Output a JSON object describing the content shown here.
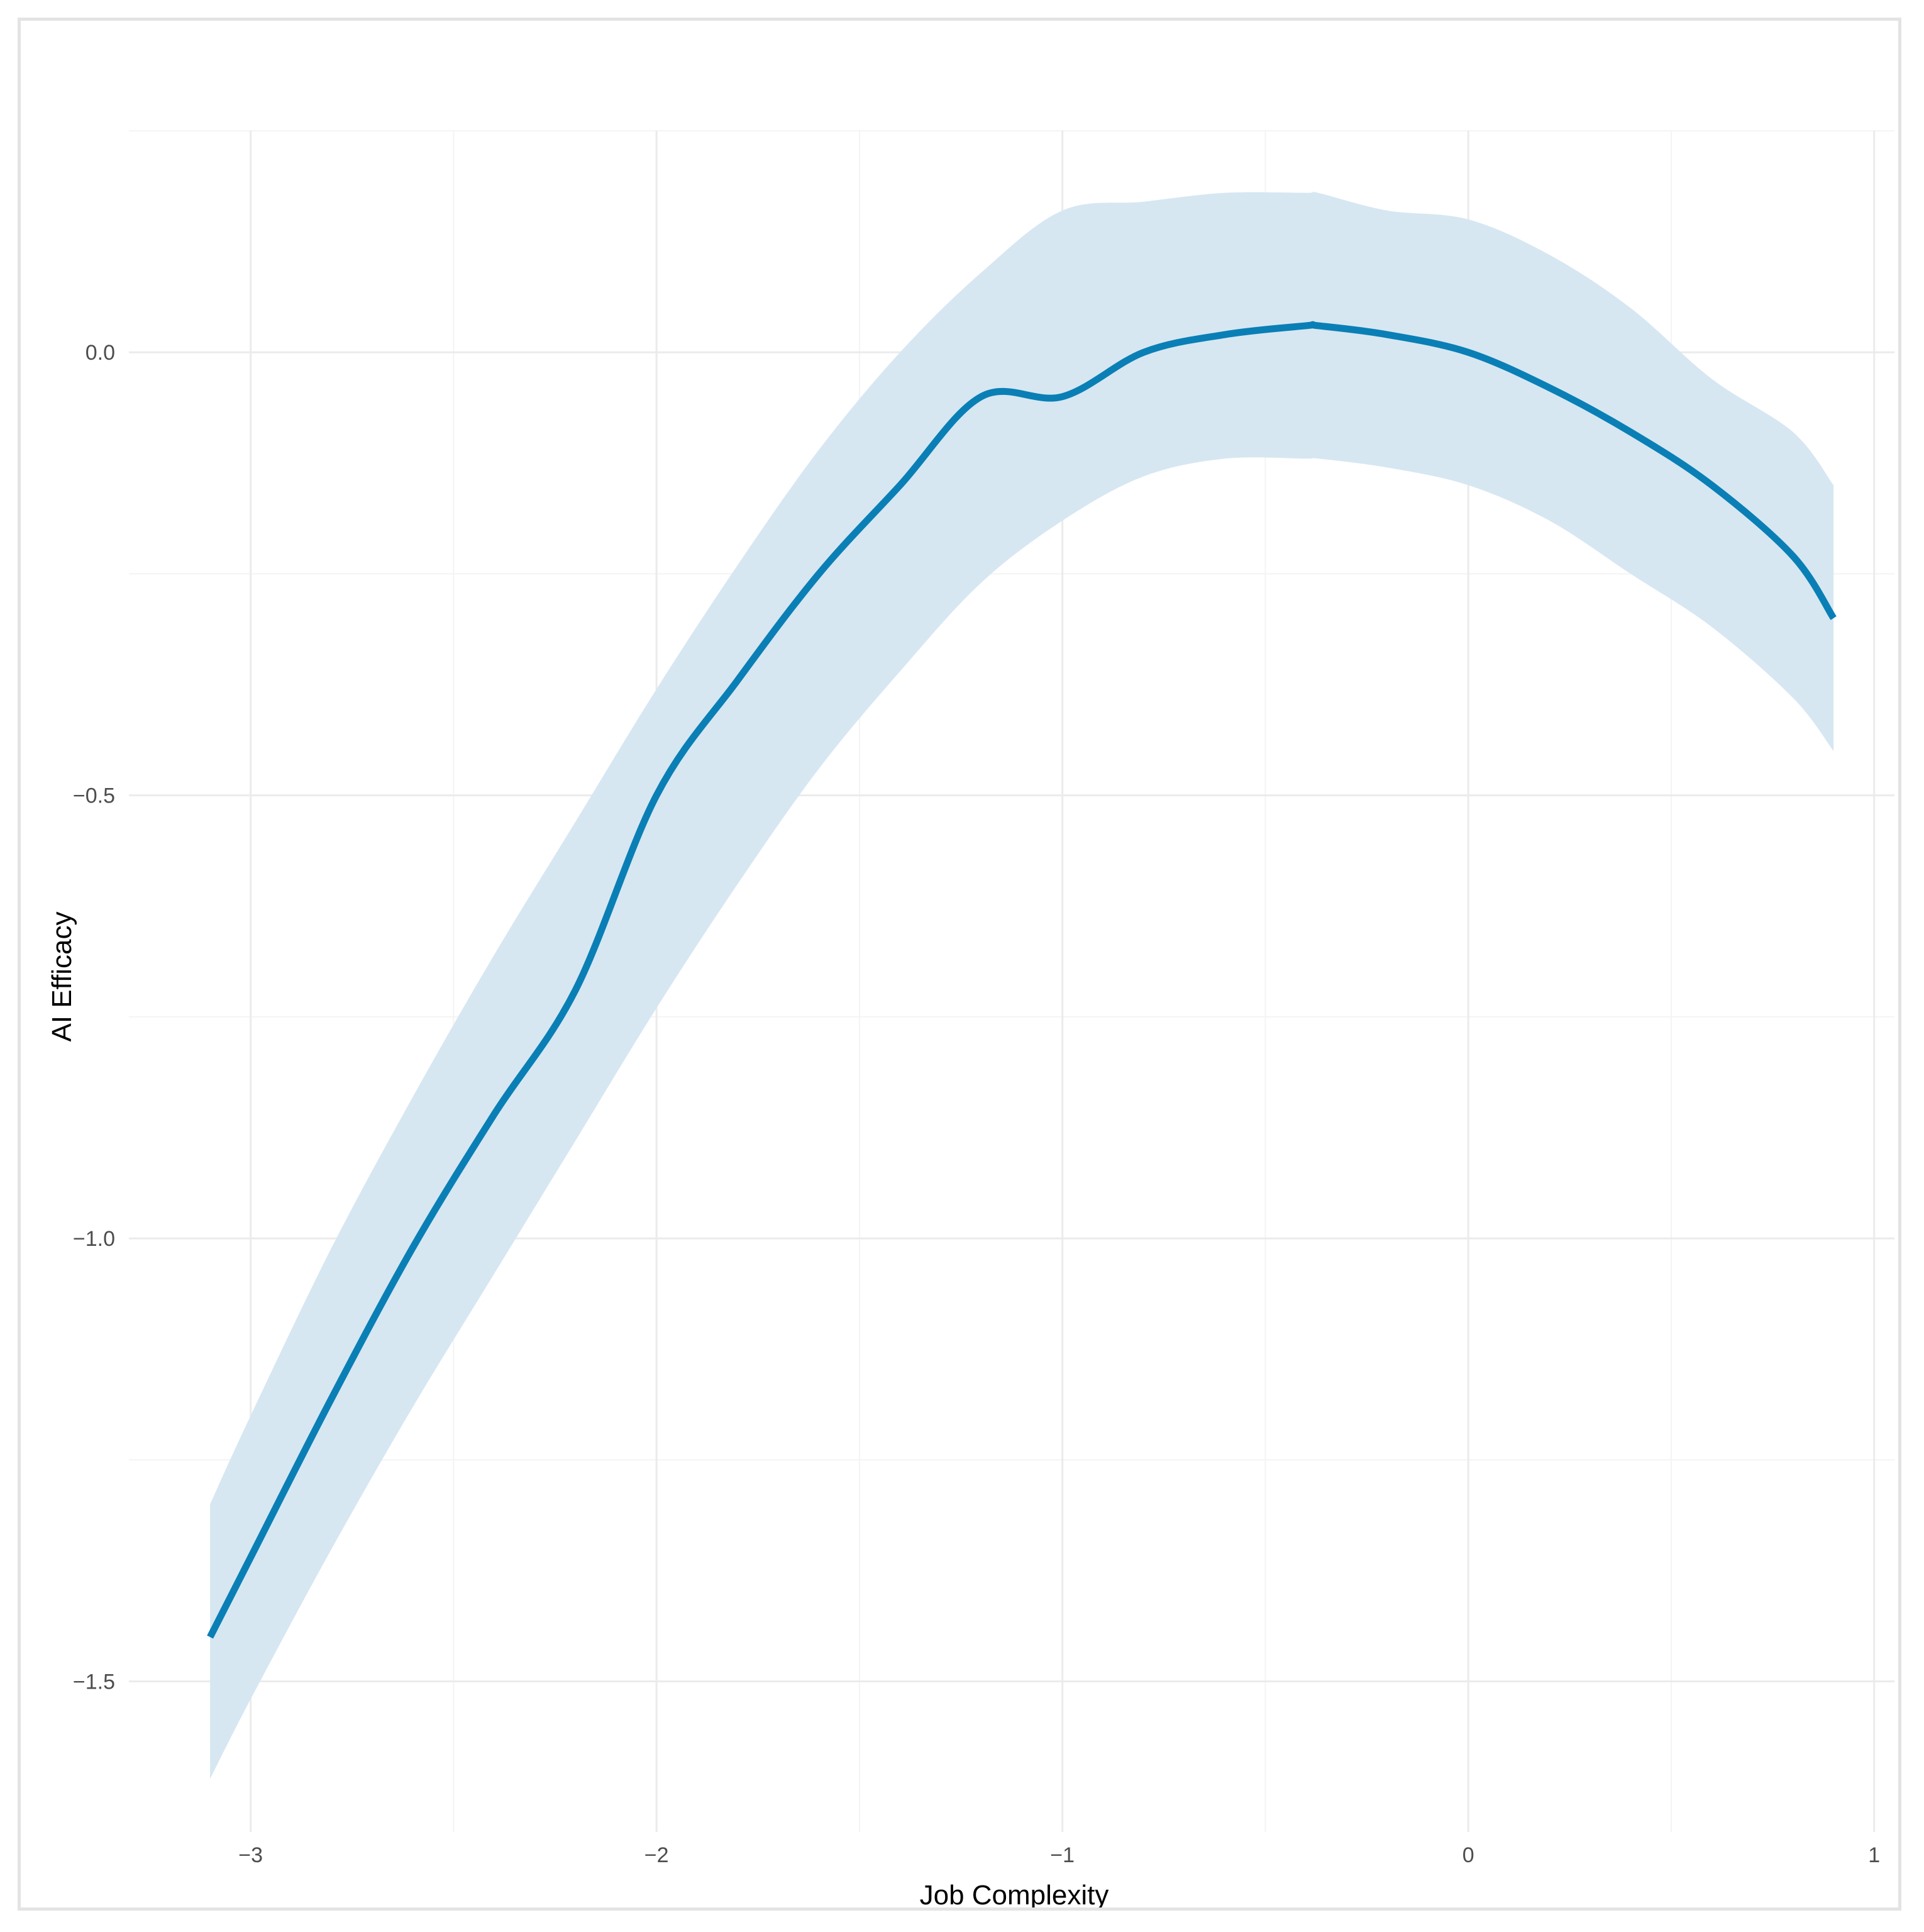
{
  "chart_data": {
    "type": "line",
    "title": "",
    "xlabel": "Job Complexity",
    "ylabel": "AI Efficacy",
    "xlim": [
      -3.3,
      1.05
    ],
    "ylim": [
      -1.67,
      0.25
    ],
    "x_ticks": [
      -3,
      -2,
      -1,
      0,
      1
    ],
    "x_tick_labels": [
      "−3",
      "−2",
      "−1",
      "0",
      "1"
    ],
    "y_ticks": [
      -1.5,
      -1.0,
      -0.5,
      0.0
    ],
    "y_tick_labels": [
      "−1.5",
      "−1.0",
      "−0.5",
      "0.0"
    ],
    "grid": true,
    "legend": "none",
    "colors": {
      "line": "#0a7fb5",
      "band": "#d6e7f2"
    },
    "series": [
      {
        "x": [
          -3.1,
          -3.0,
          -2.8,
          -2.6,
          -2.4,
          -2.2,
          -2.0,
          -1.8,
          -1.6,
          -1.4,
          -1.2,
          -1.0,
          -0.8,
          -0.6,
          -0.4,
          -0.37,
          -0.2,
          0.0,
          0.2,
          0.4,
          0.6,
          0.8,
          0.9
        ],
        "y": [
          -1.45,
          -1.36,
          -1.18,
          -1.01,
          -0.86,
          -0.72,
          -0.5,
          -0.37,
          -0.25,
          -0.15,
          -0.05,
          -0.05,
          0.0,
          0.02,
          0.03,
          0.03,
          0.02,
          0.0,
          -0.04,
          -0.09,
          -0.15,
          -0.23,
          -0.3
        ],
        "lower": [
          -1.61,
          -1.52,
          -1.35,
          -1.19,
          -1.04,
          -0.89,
          -0.74,
          -0.6,
          -0.47,
          -0.36,
          -0.26,
          -0.19,
          -0.14,
          -0.12,
          -0.12,
          -0.12,
          -0.13,
          -0.15,
          -0.19,
          -0.25,
          -0.31,
          -0.39,
          -0.45
        ],
        "upper": [
          -1.3,
          -1.2,
          -1.01,
          -0.84,
          -0.68,
          -0.53,
          -0.38,
          -0.24,
          -0.11,
          -0.0,
          0.09,
          0.16,
          0.17,
          0.18,
          0.18,
          0.18,
          0.16,
          0.15,
          0.11,
          0.05,
          -0.03,
          -0.09,
          -0.15
        ]
      }
    ]
  }
}
